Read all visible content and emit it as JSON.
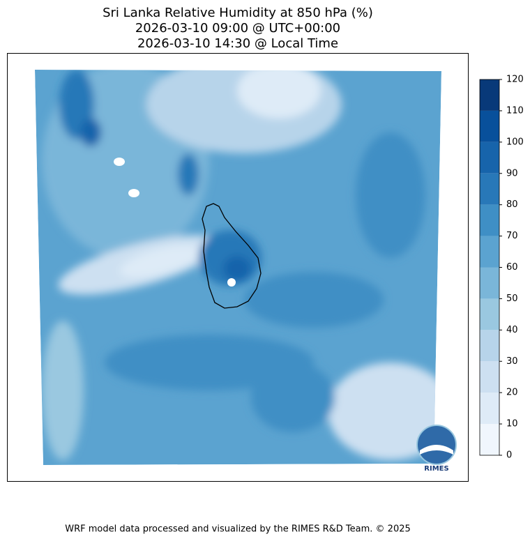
{
  "header": {
    "title_lines": [
      "Sri Lanka Relative Humidity at 850 hPa (%)",
      "2026-03-10 09:00 @ UTC+00:00",
      "2026-03-10 14:30 @ Local Time"
    ]
  },
  "colorbar": {
    "ticks": [
      0,
      10,
      20,
      30,
      40,
      50,
      60,
      70,
      80,
      90,
      100,
      110,
      120
    ],
    "colors": [
      "#f0f6fd",
      "#deebf7",
      "#cde0f1",
      "#b7d4ea",
      "#9ac8e0",
      "#7ab6d9",
      "#5ba3d0",
      "#3f8fc5",
      "#2878b8",
      "#1764ab",
      "#08509b",
      "#083979"
    ]
  },
  "logo": {
    "text": "RIMES"
  },
  "footer": {
    "text": "WRF model data processed and visualized by the RIMES R&D Team. © 2025"
  }
}
